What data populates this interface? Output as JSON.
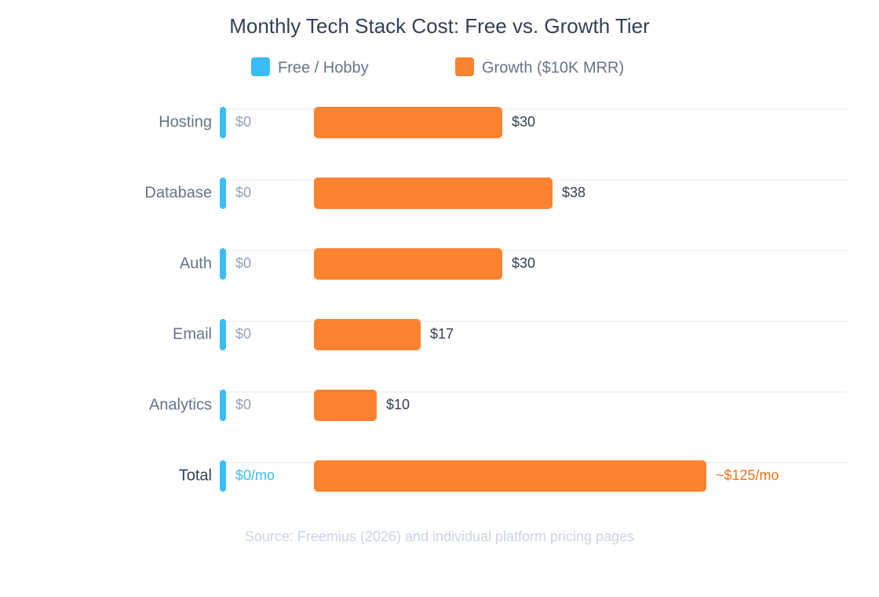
{
  "chart_data": {
    "type": "bar",
    "orientation": "horizontal",
    "title": "Monthly Tech Stack Cost: Free vs. Growth Tier",
    "categories": [
      "Hosting",
      "Database",
      "Auth",
      "Email",
      "Analytics",
      "Total"
    ],
    "series": [
      {
        "name": "Free / Hobby",
        "color": "#38bdf8",
        "values": [
          0,
          0,
          0,
          0,
          0,
          0
        ],
        "value_labels": [
          "$0",
          "$0",
          "$0",
          "$0",
          "$0",
          "$0/mo"
        ]
      },
      {
        "name": "Growth ($10K MRR)",
        "color": "#fb8330",
        "values": [
          30,
          38,
          30,
          17,
          10,
          125
        ],
        "value_labels": [
          "$30",
          "$38",
          "$30",
          "$17",
          "$10",
          "~$125/mo"
        ]
      }
    ],
    "grid": true,
    "source": "Source: Freemius (2026) and individual platform pricing pages"
  }
}
